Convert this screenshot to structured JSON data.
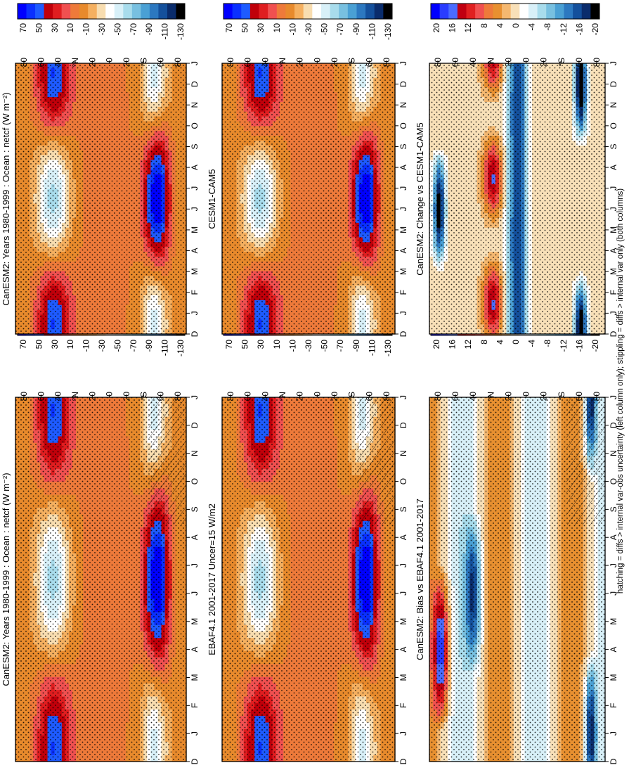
{
  "figure_note": "hatching = diffs > internal var-obs uncertainty (left column only); stippling = diffs > internal var only (both columns)",
  "colors": {
    "absolute_scale": [
      "#0000ff",
      "#0a30ff",
      "#1e5bff",
      "#c0000a",
      "#e01e20",
      "#f05050",
      "#ee7a3a",
      "#e88a2c",
      "#f5b060",
      "#f8ddb0",
      "#ffffff",
      "#d8f0f8",
      "#a8dcec",
      "#78c0e0",
      "#4aa0d4",
      "#2c78c0",
      "#14509c",
      "#0a2c6c",
      "#000000"
    ],
    "diff_scale": [
      "#0000ff",
      "#2a3cff",
      "#4a6cff",
      "#c00010",
      "#e02020",
      "#f05050",
      "#ee7a3a",
      "#e89030",
      "#f5b870",
      "#f8e0b8",
      "#ffffff",
      "#d8f0f8",
      "#a8dcec",
      "#78c0e0",
      "#4aa0d4",
      "#2c78c0",
      "#14509c",
      "#0a2c6c",
      "#000000"
    ]
  },
  "chart_data": [
    {
      "type": "heatmap",
      "panel": "left-top",
      "title": "CanESM2: Years 1980-1999 : Ocean : netcf (W m⁻²)",
      "x": [
        "D",
        "J",
        "F",
        "M",
        "A",
        "M",
        "J",
        "J",
        "A",
        "S",
        "O",
        "N",
        "D",
        "J"
      ],
      "y_ticks": [
        "80",
        "60",
        "40",
        "°N",
        "20",
        "0",
        "20",
        "°S",
        "60",
        "80"
      ],
      "colorbar": [
        "70",
        "50",
        "30",
        "10",
        "-10",
        "-30",
        "-50",
        "-70",
        "-90",
        "-110",
        "-130"
      ],
      "hatching": true,
      "stippling": true
    },
    {
      "type": "heatmap",
      "panel": "right-top",
      "title": "CanESM2: Years 1980-1999 : Ocean : netcf (W m⁻²)",
      "x": [
        "D",
        "J",
        "F",
        "M",
        "A",
        "M",
        "J",
        "J",
        "A",
        "S",
        "O",
        "N",
        "D",
        "J"
      ],
      "y_ticks": [
        "80",
        "60",
        "40",
        "°N",
        "20",
        "0",
        "20",
        "°S",
        "60",
        "80"
      ],
      "colorbar": [
        "70",
        "50",
        "30",
        "10",
        "-10",
        "-30",
        "-50",
        "-70",
        "-90",
        "-110",
        "-130"
      ],
      "hatching": false,
      "stippling": true
    },
    {
      "type": "heatmap",
      "panel": "left-middle",
      "title": "EBAF4.1 2001-2017 Uncer=15 W/m2",
      "x": [
        "D",
        "J",
        "F",
        "M",
        "A",
        "M",
        "J",
        "J",
        "A",
        "S",
        "O",
        "N",
        "D",
        "J"
      ],
      "y_ticks": [
        "80",
        "60",
        "40",
        "°N",
        "20",
        "0",
        "20",
        "°S",
        "60",
        "80"
      ],
      "colorbar": [
        "70",
        "50",
        "30",
        "10",
        "-10",
        "-30",
        "-50",
        "-70",
        "-90",
        "-110",
        "-130"
      ],
      "hatching": true,
      "stippling": true
    },
    {
      "type": "heatmap",
      "panel": "right-middle",
      "title": "CESM1-CAM5",
      "x": [
        "D",
        "J",
        "F",
        "M",
        "A",
        "M",
        "J",
        "J",
        "A",
        "S",
        "O",
        "N",
        "D",
        "J"
      ],
      "y_ticks": [
        "80",
        "60",
        "40",
        "°N",
        "20",
        "0",
        "20",
        "°S",
        "60",
        "80"
      ],
      "colorbar": [
        "70",
        "50",
        "30",
        "10",
        "-10",
        "-30",
        "-50",
        "-70",
        "-90",
        "-110",
        "-130"
      ],
      "hatching": false,
      "stippling": true
    },
    {
      "type": "heatmap",
      "panel": "left-bottom",
      "title": "CanESM2: Bias vs EBAF4.1 2001-2017",
      "x": [
        "D",
        "J",
        "F",
        "M",
        "A",
        "M",
        "J",
        "J",
        "A",
        "S",
        "O",
        "N",
        "D",
        "J"
      ],
      "y_ticks": [
        "80",
        "60",
        "40",
        "°N",
        "20",
        "0",
        "20",
        "°S",
        "60",
        "80"
      ],
      "colorbar": [
        "20",
        "16",
        "12",
        "8",
        "4",
        "0",
        "-4",
        "-8",
        "-12",
        "-16",
        "-20"
      ],
      "hatching": true,
      "stippling": true
    },
    {
      "type": "heatmap",
      "panel": "right-bottom",
      "title": "CanESM2: Change vs CESM1-CAM5",
      "x": [
        "D",
        "J",
        "F",
        "M",
        "A",
        "M",
        "J",
        "J",
        "A",
        "S",
        "O",
        "N",
        "D",
        "J"
      ],
      "y_ticks": [
        "80",
        "60",
        "40",
        "°N",
        "20",
        "0",
        "20",
        "°S",
        "60",
        "80"
      ],
      "colorbar": [
        "20",
        "16",
        "12",
        "8",
        "4",
        "0",
        "-4",
        "-8",
        "-12",
        "-16",
        "-20"
      ],
      "hatching": false,
      "stippling": true
    }
  ]
}
